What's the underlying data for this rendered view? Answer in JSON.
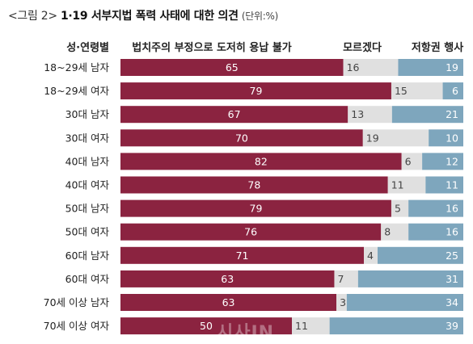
{
  "title": {
    "figure": "<그림 2>",
    "main": "1·19 서부지법 폭력 사태에 대한 의견",
    "unit": "(단위:%)"
  },
  "watermark": "시사IN",
  "colors": {
    "series1": "#8b2340",
    "series2": "#e0e0e0",
    "series3": "#7ea6bd"
  },
  "chart_data": {
    "type": "bar",
    "orientation": "horizontal",
    "stacked": true,
    "title": "1·19 서부지법 폭력 사태에 대한 의견",
    "category_header": "성·연령별",
    "categories": [
      "18~29세 남자",
      "18~29세 여자",
      "30대 남자",
      "30대 여자",
      "40대 남자",
      "40대 여자",
      "50대 남자",
      "50대 여자",
      "60대 남자",
      "60대 여자",
      "70세 이상 남자",
      "70세 이상 여자"
    ],
    "series": [
      {
        "name": "법치주의 부정으로 도저히 용납 불가",
        "values": [
          65,
          79,
          67,
          70,
          82,
          78,
          79,
          76,
          71,
          63,
          63,
          50
        ]
      },
      {
        "name": "모르겠다",
        "values": [
          16,
          15,
          13,
          19,
          6,
          11,
          5,
          8,
          4,
          7,
          3,
          11
        ]
      },
      {
        "name": "저항권 행사",
        "values": [
          19,
          6,
          21,
          10,
          12,
          11,
          16,
          16,
          25,
          31,
          34,
          39
        ]
      }
    ]
  }
}
